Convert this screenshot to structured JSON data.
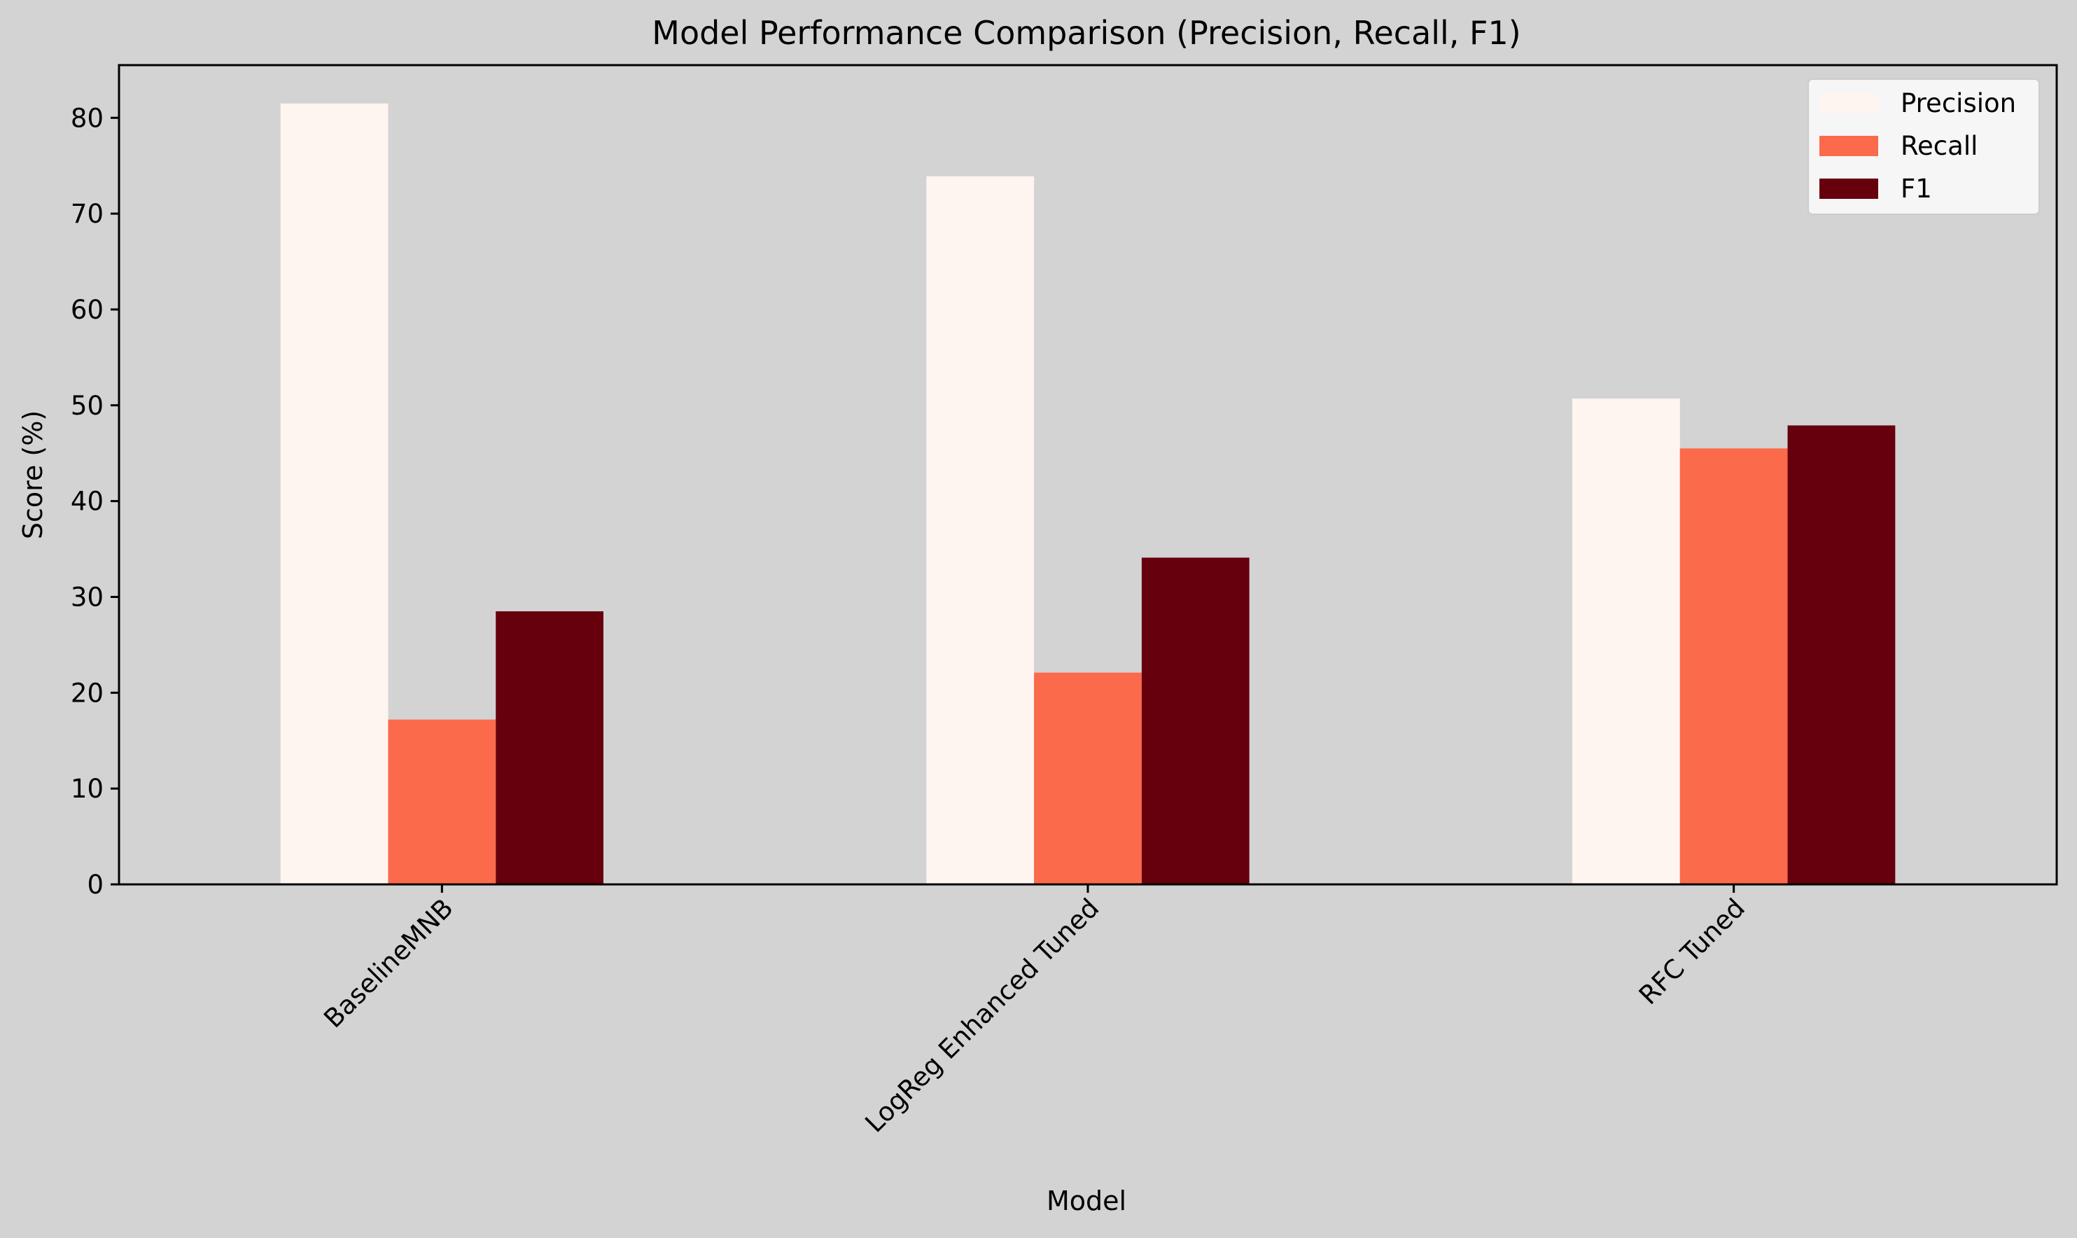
{
  "chart_data": {
    "type": "bar",
    "title": "Model Performance Comparison (Precision, Recall, F1)",
    "xlabel": "Model",
    "ylabel": "Score (%)",
    "categories": [
      "BaselineMNB",
      "LogReg Enhanced Tuned",
      "RFC Tuned"
    ],
    "series": [
      {
        "name": "Precision",
        "color": "#fff5f0",
        "values": [
          81.5,
          73.9,
          50.7
        ]
      },
      {
        "name": "Recall",
        "color": "#fb6a4a",
        "values": [
          17.2,
          22.1,
          45.5
        ]
      },
      {
        "name": "F1",
        "color": "#67000d",
        "values": [
          28.5,
          34.1,
          47.9
        ]
      }
    ],
    "ylim": [
      0,
      85.5
    ],
    "yticks": [
      0,
      10,
      20,
      30,
      40,
      50,
      60,
      70,
      80
    ],
    "grid": false,
    "legend_position": "top-right",
    "background_color": "#d3d3d3",
    "legend_background": "#f6f6f6"
  }
}
